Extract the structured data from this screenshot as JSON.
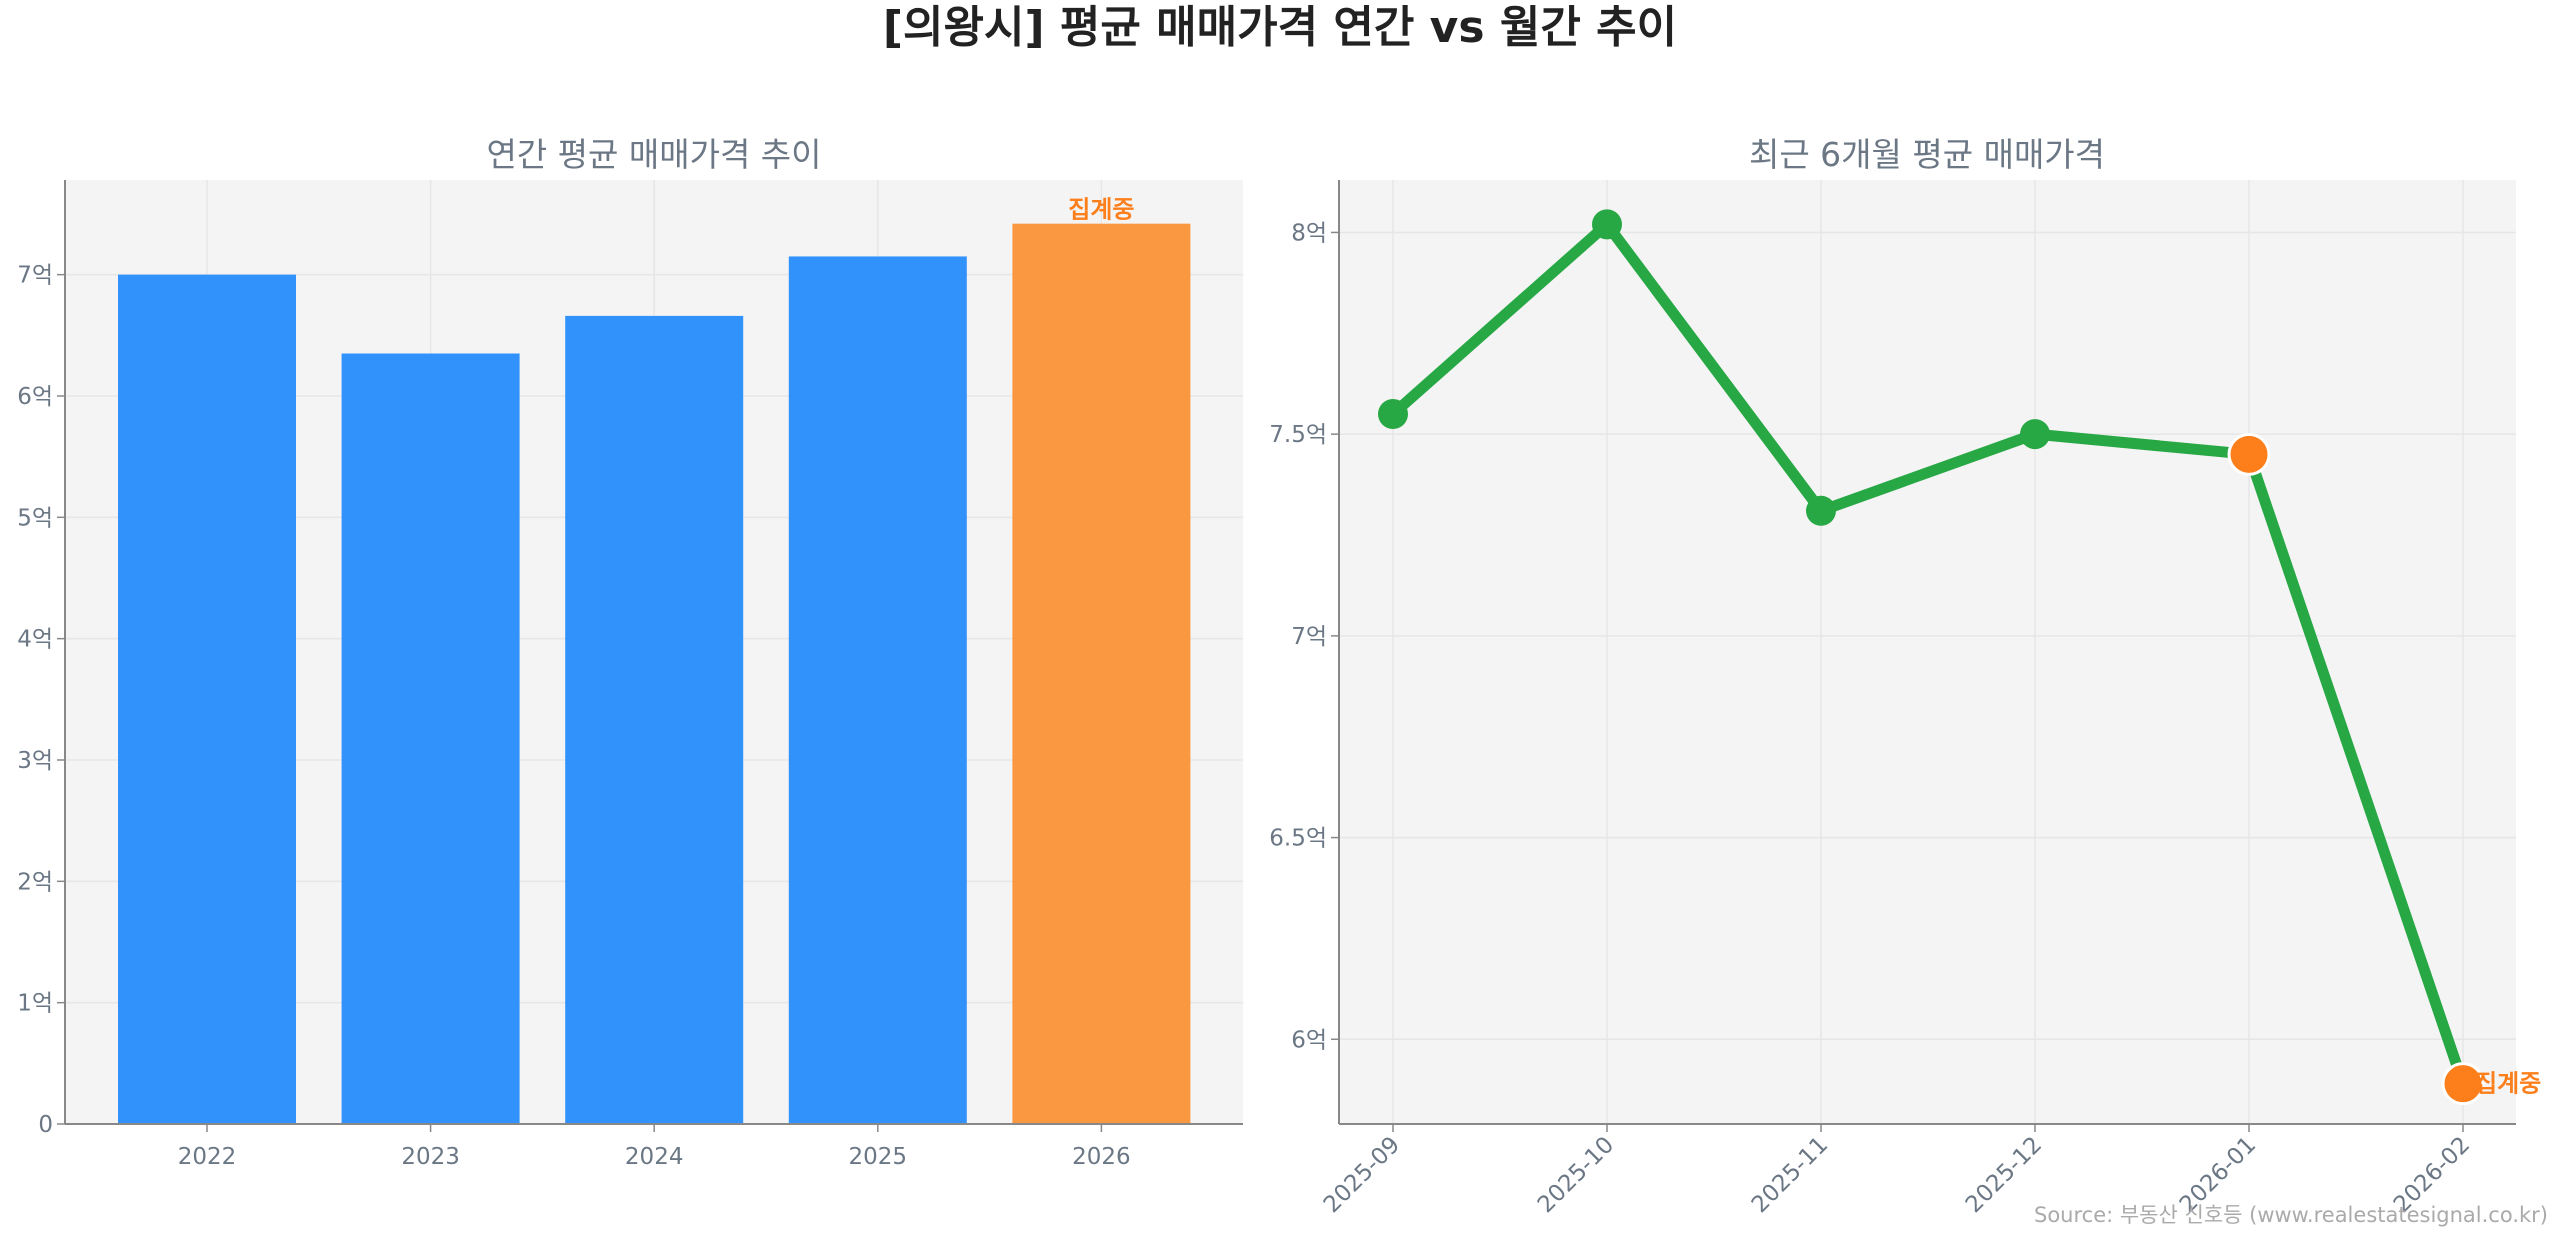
{
  "title": "[의왕시] 평균 매매가격 연간 vs 월간 추이",
  "source": "Source: 부동산 신호등 (www.realestatesignal.co.kr)",
  "colors": {
    "bar": "#3192fb",
    "bar_partial": "#f99841",
    "line": "#27a844",
    "partial_marker": "#fc7f1b",
    "partial_label": "#fc7f1b"
  },
  "chart_data": [
    {
      "type": "bar",
      "title": "연간 평균 매매가격 추이",
      "categories": [
        "2022",
        "2023",
        "2024",
        "2025",
        "2026"
      ],
      "values": [
        7.0,
        6.35,
        6.66,
        7.15,
        7.42
      ],
      "partial": [
        false,
        false,
        false,
        false,
        true
      ],
      "annotation": "집계중",
      "unit": "억",
      "ylim": [
        0,
        7.78
      ],
      "yticks": [
        0,
        1,
        2,
        3,
        4,
        5,
        6,
        7
      ],
      "ytick_labels": [
        "0",
        "1억",
        "2억",
        "3억",
        "4억",
        "5억",
        "6억",
        "7억"
      ],
      "grid": true
    },
    {
      "type": "line",
      "title": "최근 6개월 평균 매매가격",
      "categories": [
        "2025-09",
        "2025-10",
        "2025-11",
        "2025-12",
        "2026-01",
        "2026-02"
      ],
      "values": [
        7.55,
        8.02,
        7.31,
        7.5,
        7.45,
        5.89
      ],
      "partial": [
        false,
        false,
        false,
        false,
        true,
        true
      ],
      "annotation": "집계중",
      "unit": "억",
      "ylim": [
        5.79,
        8.13
      ],
      "yticks": [
        6,
        6.5,
        7,
        7.5,
        8
      ],
      "ytick_labels": [
        "6억",
        "6.5억",
        "7억",
        "7.5억",
        "8억"
      ],
      "grid": true
    }
  ]
}
